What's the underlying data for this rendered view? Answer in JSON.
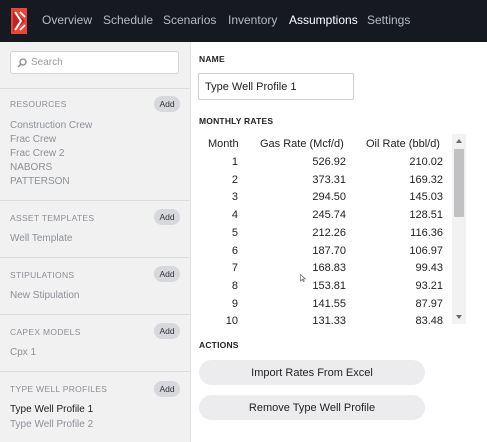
{
  "nav": {
    "tabs": [
      {
        "label": "Overview",
        "active": false
      },
      {
        "label": "Schedule",
        "active": false
      },
      {
        "label": "Scenarios",
        "active": false
      },
      {
        "label": "Inventory",
        "active": false
      },
      {
        "label": "Assumptions",
        "active": true
      },
      {
        "label": "Settings",
        "active": false
      }
    ]
  },
  "sidebar": {
    "search_placeholder": "Search",
    "add_label": "Add",
    "sections": [
      {
        "title": "RESOURCES",
        "items": [
          "Construction Crew",
          "Frac Crew",
          "Frac Crew 2",
          "NABORS",
          "PATTERSON"
        ]
      },
      {
        "title": "ASSET TEMPLATES",
        "items": [
          "Well Template"
        ]
      },
      {
        "title": "STIPULATIONS",
        "items": [
          "New Stipulation"
        ]
      },
      {
        "title": "CAPEX MODELS",
        "items": [
          "Cpx 1"
        ]
      },
      {
        "title": "TYPE WELL PROFILES",
        "items": [
          "Type Well Profile 1",
          "Type Well Profile 2"
        ]
      }
    ],
    "active_item": "Type Well Profile 1"
  },
  "main": {
    "name_label": "NAME",
    "name_value": "Type Well Profile 1",
    "rates_label": "MONTHLY RATES",
    "table": {
      "columns": [
        "Month",
        "Gas Rate (Mcf/d)",
        "Oil Rate (bbl/d)"
      ],
      "rows": [
        [
          "1",
          "526.92",
          "210.02"
        ],
        [
          "2",
          "373.31",
          "169.32"
        ],
        [
          "3",
          "294.50",
          "145.03"
        ],
        [
          "4",
          "245.74",
          "128.51"
        ],
        [
          "5",
          "212.26",
          "116.36"
        ],
        [
          "6",
          "187.70",
          "106.97"
        ],
        [
          "7",
          "168.83",
          "99.43"
        ],
        [
          "8",
          "153.81",
          "93.21"
        ],
        [
          "9",
          "141.55",
          "87.97"
        ],
        [
          "10",
          "131.33",
          "83.48"
        ]
      ]
    },
    "actions_label": "ACTIONS",
    "import_button": "Import Rates From Excel",
    "remove_button": "Remove Type Well Profile"
  },
  "colors": {
    "topbar": "#161a20",
    "sidebar": "#f1f1f2",
    "logo": "#e8453c"
  }
}
